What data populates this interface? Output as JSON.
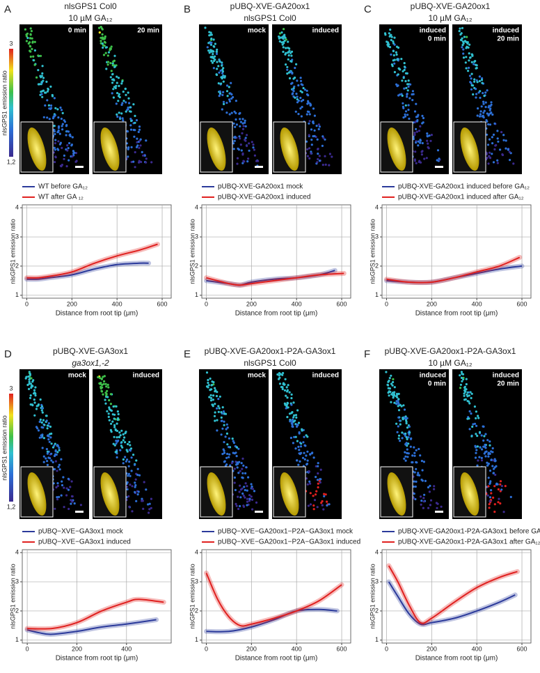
{
  "colorbar": {
    "label": "nlsGPS1 emission ratio",
    "ticks": [
      3,
      {
        "value": 1.2,
        "label": "1,2"
      }
    ]
  },
  "panels": [
    {
      "letter": "A",
      "title": [
        "nlsGPS1 Col0",
        "10 µM GA₁₂"
      ],
      "image_labels": [
        [
          "0 min"
        ],
        [
          "20 min"
        ]
      ]
    },
    {
      "letter": "B",
      "title": [
        "pUBQ-XVE-GA20ox1",
        "nlsGPS1 Col0"
      ],
      "image_labels": [
        [
          "mock"
        ],
        [
          "induced"
        ]
      ]
    },
    {
      "letter": "C",
      "title": [
        "pUBQ-XVE-GA20ox1",
        "10 µM GA₁₂"
      ],
      "image_labels": [
        [
          "induced",
          "0 min"
        ],
        [
          "induced",
          "20 min"
        ]
      ]
    },
    {
      "letter": "D",
      "title": [
        "pUBQ-XVE-GA3ox1",
        "ga3ox1,-2"
      ],
      "image_labels": [
        [
          "mock"
        ],
        [
          "induced"
        ]
      ]
    },
    {
      "letter": "E",
      "title": [
        "pUBQ-XVE-GA20ox1-P2A-GA3ox1",
        "nlsGPS1 Col0"
      ],
      "image_labels": [
        [
          "mock"
        ],
        [
          "induced"
        ]
      ]
    },
    {
      "letter": "F",
      "title": [
        "pUBQ-XVE-GA20ox1-P2A-GA3ox1",
        "10 µM GA₁₂"
      ],
      "image_labels": [
        [
          "induced",
          "0 min"
        ],
        [
          "induced",
          "20 min"
        ]
      ]
    }
  ],
  "chart_data": [
    {
      "type": "line",
      "x_label": "Distance from root tip (μm)",
      "y_label": "nlsGPS1 emission ratio",
      "grid": true,
      "xlim": [
        -20,
        640
      ],
      "xticks": [
        0,
        200,
        400,
        600
      ],
      "ylim": [
        0.9,
        4.1
      ],
      "yticks": [
        1,
        2,
        3,
        4
      ],
      "series": [
        {
          "name": "WT before GA₁₂",
          "color": "#2b3a9b",
          "x": [
            0,
            50,
            100,
            200,
            300,
            400,
            500,
            540
          ],
          "values": [
            1.55,
            1.55,
            1.6,
            1.7,
            1.9,
            2.05,
            2.1,
            2.1
          ]
        },
        {
          "name": "WT after GA ₁₂",
          "color": "#e0201f",
          "x": [
            0,
            50,
            100,
            200,
            300,
            400,
            500,
            580
          ],
          "values": [
            1.6,
            1.6,
            1.65,
            1.8,
            2.1,
            2.35,
            2.55,
            2.75
          ]
        }
      ]
    },
    {
      "type": "line",
      "x_label": "Distance from root tip (μm)",
      "y_label": "nlsGPS1 emission ratio",
      "grid": true,
      "xlim": [
        -20,
        640
      ],
      "xticks": [
        0,
        200,
        400,
        600
      ],
      "ylim": [
        0.9,
        4.1
      ],
      "yticks": [
        1,
        2,
        3,
        4
      ],
      "series": [
        {
          "name": "pUBQ-XVE-GA20ox1 mock",
          "color": "#2b3a9b",
          "x": [
            0,
            100,
            150,
            200,
            300,
            400,
            500,
            570
          ],
          "values": [
            1.5,
            1.4,
            1.35,
            1.45,
            1.55,
            1.6,
            1.7,
            1.85
          ]
        },
        {
          "name": "pUBQ-XVE-GA20ox1 induced",
          "color": "#e0201f",
          "x": [
            0,
            100,
            150,
            200,
            300,
            400,
            500,
            610
          ],
          "values": [
            1.6,
            1.4,
            1.35,
            1.4,
            1.5,
            1.6,
            1.7,
            1.75
          ]
        }
      ]
    },
    {
      "type": "line",
      "x_label": "Distance from root tip (μm)",
      "y_label": "nlsGPS1 emission ratio",
      "grid": true,
      "xlim": [
        -20,
        640
      ],
      "xticks": [
        0,
        200,
        400,
        600
      ],
      "ylim": [
        0.9,
        4.1
      ],
      "yticks": [
        1,
        2,
        3,
        4
      ],
      "series": [
        {
          "name": "pUBQ-XVE-GA20ox1 induced before GA₁₂",
          "color": "#2b3a9b",
          "x": [
            0,
            100,
            200,
            300,
            400,
            500,
            600
          ],
          "values": [
            1.5,
            1.45,
            1.45,
            1.6,
            1.75,
            1.9,
            2.0
          ]
        },
        {
          "name": "pUBQ-XVE-GA20ox1 induced after GA₁₂",
          "color": "#e0201f",
          "x": [
            0,
            100,
            200,
            300,
            400,
            500,
            590
          ],
          "values": [
            1.55,
            1.45,
            1.45,
            1.6,
            1.8,
            2.0,
            2.3
          ]
        }
      ]
    },
    {
      "type": "line",
      "x_label": "Distance from root tip (μm)",
      "y_label": "nlsGPS1 emission ratio",
      "grid": true,
      "xlim": [
        -20,
        580
      ],
      "xticks": [
        0,
        200,
        400
      ],
      "ylim": [
        0.9,
        4.1
      ],
      "yticks": [
        1,
        2,
        3,
        4
      ],
      "series": [
        {
          "name": "pUBQ−XVE−GA3ox1 mock",
          "color": "#2b3a9b",
          "x": [
            0,
            50,
            100,
            200,
            300,
            400,
            520
          ],
          "values": [
            1.35,
            1.25,
            1.2,
            1.3,
            1.45,
            1.55,
            1.7
          ]
        },
        {
          "name": "pUBQ−XVE−GA3ox1 induced",
          "color": "#e0201f",
          "x": [
            0,
            100,
            200,
            300,
            400,
            450,
            550
          ],
          "values": [
            1.4,
            1.4,
            1.6,
            2.0,
            2.3,
            2.4,
            2.3
          ]
        }
      ]
    },
    {
      "type": "line",
      "x_label": "Distance from root tip (μm)",
      "y_label": "nlsGPS1 emission ratio",
      "grid": true,
      "xlim": [
        -20,
        640
      ],
      "xticks": [
        0,
        200,
        400,
        600
      ],
      "ylim": [
        0.9,
        4.1
      ],
      "yticks": [
        1,
        2,
        3,
        4
      ],
      "series": [
        {
          "name": "pUBQ−XVE−GA20ox1−P2A−GA3ox1 mock",
          "color": "#2b3a9b",
          "x": [
            0,
            100,
            200,
            300,
            400,
            500,
            580
          ],
          "values": [
            1.3,
            1.3,
            1.45,
            1.7,
            2.0,
            2.05,
            2.0
          ]
        },
        {
          "name": "pUBQ−XVE−GA20ox1−P2A−GA3ox1 induced",
          "color": "#e0201f",
          "x": [
            0,
            50,
            100,
            150,
            200,
            300,
            400,
            500,
            600
          ],
          "values": [
            3.3,
            2.4,
            1.8,
            1.5,
            1.55,
            1.75,
            2.0,
            2.35,
            2.9
          ]
        }
      ]
    },
    {
      "type": "line",
      "x_label": "Distance from root tip (μm)",
      "y_label": "nlsGPS1 emission ratio",
      "grid": true,
      "xlim": [
        -20,
        640
      ],
      "xticks": [
        0,
        200,
        400,
        600
      ],
      "ylim": [
        0.9,
        4.1
      ],
      "yticks": [
        1,
        2,
        3,
        4
      ],
      "series": [
        {
          "name": "pUBQ-XVE-GA20ox1-P2A-GA3ox1 before GA₁₂",
          "color": "#2b3a9b",
          "x": [
            10,
            50,
            100,
            150,
            200,
            300,
            400,
            500,
            570
          ],
          "values": [
            3.0,
            2.5,
            1.9,
            1.55,
            1.6,
            1.75,
            2.0,
            2.3,
            2.55
          ]
        },
        {
          "name": "pUBQ-XVE-GA20ox1-P2A-GA3ox1 after GA₁₂",
          "color": "#e0201f",
          "x": [
            10,
            50,
            100,
            150,
            200,
            300,
            400,
            500,
            580
          ],
          "values": [
            3.55,
            3.0,
            2.2,
            1.6,
            1.75,
            2.3,
            2.8,
            3.15,
            3.35
          ]
        }
      ]
    }
  ]
}
